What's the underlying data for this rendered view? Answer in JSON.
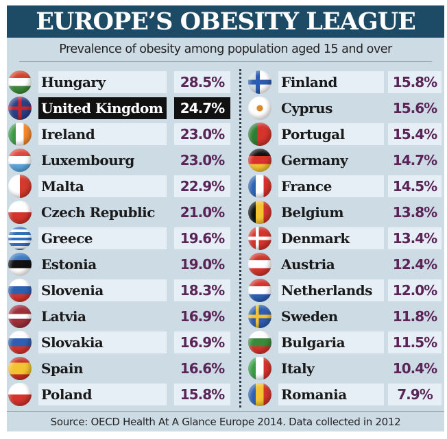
{
  "title": "EUROPE’S OBESITY LEAGUE",
  "subtitle": "Prevalence of obesity among population aged 15 and over",
  "source": "Source: OECD Health At A Glance Europe 2014. Data collected in 2012",
  "colors": {
    "header": "#1d4a64",
    "value": "#5b2458",
    "highlight": "#111111",
    "background": "#cddbe5"
  },
  "chart_data": {
    "type": "table",
    "title": "EUROPE’S OBESITY LEAGUE",
    "highlighted": "United Kingdom",
    "rows": [
      {
        "country": "Hungary",
        "value": "28.5%",
        "flag": "linear-gradient(#d2432c 33%,#fff 33% 66%,#3e8a3a 66%)"
      },
      {
        "country": "United Kingdom",
        "value": "24.7%",
        "flag": "linear-gradient(transparent 42%,#c8262e 42% 58%,transparent 58%),linear-gradient(90deg,transparent 42%,#c8262e 42% 58%,transparent 58%),linear-gradient(#2a3f86,#2a3f86)"
      },
      {
        "country": "Ireland",
        "value": "23.0%",
        "flag": "linear-gradient(90deg,#3a9a48 33%,#fff 33% 66%,#f08a30 66%)"
      },
      {
        "country": "Luxembourg",
        "value": "23.0%",
        "flag": "linear-gradient(#e0453a 33%,#fff 33% 66%,#5aa6dc 66%)"
      },
      {
        "country": "Malta",
        "value": "22.9%",
        "flag": "linear-gradient(90deg,#fff 50%,#d43a2c 50%)"
      },
      {
        "country": "Czech Republic",
        "value": "21.0%",
        "flag": "linear-gradient(#fff 50%,#d4342c 50%)"
      },
      {
        "country": "Greece",
        "value": "19.6%",
        "flag": "repeating-linear-gradient(#2f6fbf 0 4px,#fff 4px 8px)"
      },
      {
        "country": "Estonia",
        "value": "19.0%",
        "flag": "linear-gradient(#3c7cc4 33%,#111 33% 66%,#fff 66%)"
      },
      {
        "country": "Slovenia",
        "value": "18.3%",
        "flag": "linear-gradient(#fff 33%,#2e5fb0 33% 66%,#d4342c 66%)"
      },
      {
        "country": "Latvia",
        "value": "16.9%",
        "flag": "linear-gradient(#9e2f3a 40%,#fff 40% 60%,#9e2f3a 60%)"
      },
      {
        "country": "Slovakia",
        "value": "16.9%",
        "flag": "linear-gradient(#fff 33%,#2e5fb0 33% 66%,#d4342c 66%)"
      },
      {
        "country": "Spain",
        "value": "16.6%",
        "flag": "linear-gradient(#c8302a 25%,#f4c330 25% 75%,#c8302a 75%)"
      },
      {
        "country": "Poland",
        "value": "15.8%",
        "flag": "linear-gradient(#fff 50%,#d4342c 50%)"
      },
      {
        "country": "Finland",
        "value": "15.8%",
        "flag": "linear-gradient(transparent 40%,#2a5cb0 40% 60%,transparent 60%),linear-gradient(90deg,transparent 32%,#2a5cb0 32% 50%,#fff 50%)"
      },
      {
        "country": "Cyprus",
        "value": "15.6%",
        "flag": "radial-gradient(circle,#d98a2a 18%,#fff 20%)"
      },
      {
        "country": "Portugal",
        "value": "15.4%",
        "flag": "linear-gradient(90deg,#2e7d32 40%,#d4342c 40%)"
      },
      {
        "country": "Germany",
        "value": "14.7%",
        "flag": "linear-gradient(#111 33%,#d4342c 33% 66%,#f4c330 66%)"
      },
      {
        "country": "France",
        "value": "14.5%",
        "flag": "linear-gradient(90deg,#2e5fb0 33%,#fff 33% 66%,#d4342c 66%)"
      },
      {
        "country": "Belgium",
        "value": "13.8%",
        "flag": "linear-gradient(90deg,#111 33%,#f4c330 33% 66%,#d4342c 66%)"
      },
      {
        "country": "Denmark",
        "value": "13.4%",
        "flag": "linear-gradient(transparent 42%,#fff 42% 58%,transparent 58%),linear-gradient(90deg,#d4342c 32%,#fff 32% 46%,#d4342c 46%)"
      },
      {
        "country": "Austria",
        "value": "12.4%",
        "flag": "linear-gradient(#d4342c 33%,#fff 33% 66%,#d4342c 66%)"
      },
      {
        "country": "Netherlands",
        "value": "12.0%",
        "flag": "linear-gradient(#d4342c 33%,#fff 33% 66%,#2e5fb0 66%)"
      },
      {
        "country": "Sweden",
        "value": "11.8%",
        "flag": "linear-gradient(transparent 42%,#f4c330 42% 58%,transparent 58%),linear-gradient(90deg,#2e5fb0 32%,#f4c330 32% 46%,#2e5fb0 46%)"
      },
      {
        "country": "Bulgaria",
        "value": "11.5%",
        "flag": "linear-gradient(#fff 33%,#3a8a3a 33% 66%,#d4342c 66%)"
      },
      {
        "country": "Italy",
        "value": "10.4%",
        "flag": "linear-gradient(90deg,#3a9a48 33%,#fff 33% 66%,#d4342c 66%)"
      },
      {
        "country": "Romania",
        "value": "7.9%",
        "flag": "linear-gradient(90deg,#2e5fb0 33%,#f4c330 33% 66%,#d4342c 66%)"
      }
    ]
  }
}
